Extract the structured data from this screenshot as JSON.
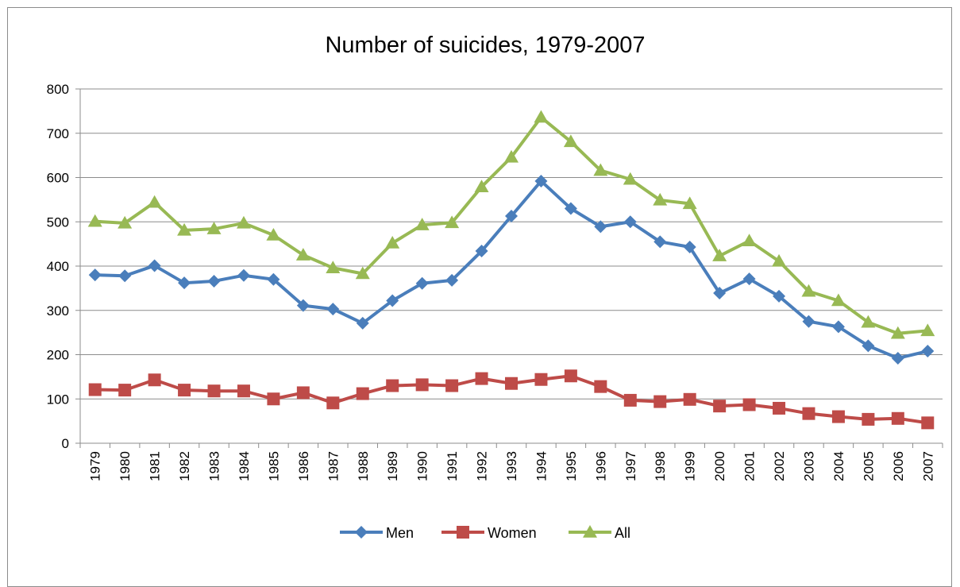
{
  "chart_data": {
    "type": "line",
    "title": "Number of suicides, 1979-2007",
    "xlabel": "",
    "ylabel": "",
    "ylim": [
      0,
      800
    ],
    "yticks": [
      "0",
      "100",
      "200",
      "300",
      "400",
      "500",
      "600",
      "700",
      "800"
    ],
    "ytick_values": [
      0,
      100,
      200,
      300,
      400,
      500,
      600,
      700,
      800
    ],
    "grid": "horizontal",
    "legend_position": "bottom",
    "categories": [
      "1979",
      "1980",
      "1981",
      "1982",
      "1983",
      "1984",
      "1985",
      "1986",
      "1987",
      "1988",
      "1989",
      "1990",
      "1991",
      "1992",
      "1993",
      "1994",
      "1995",
      "1996",
      "1997",
      "1998",
      "1999",
      "2000",
      "2001",
      "2002",
      "2003",
      "2004",
      "2005",
      "2006",
      "2007"
    ],
    "series": [
      {
        "name": "Men",
        "color": "#4a7ebb",
        "marker": "diamond",
        "values": [
          380,
          378,
          401,
          362,
          366,
          379,
          370,
          311,
          303,
          271,
          322,
          361,
          368,
          434,
          513,
          592,
          530,
          489,
          500,
          455,
          443,
          339,
          371,
          332,
          275,
          263,
          220,
          192,
          208
        ]
      },
      {
        "name": "Women",
        "color": "#be4b48",
        "marker": "square",
        "values": [
          121,
          120,
          143,
          120,
          118,
          118,
          100,
          114,
          91,
          112,
          130,
          132,
          130,
          146,
          135,
          144,
          152,
          128,
          97,
          94,
          99,
          84,
          87,
          79,
          67,
          60,
          54,
          56,
          46
        ]
      },
      {
        "name": "All",
        "color": "#98b954",
        "marker": "triangle",
        "values": [
          501,
          497,
          544,
          481,
          484,
          497,
          470,
          425,
          396,
          383,
          452,
          493,
          498,
          579,
          646,
          736,
          681,
          616,
          596,
          549,
          541,
          423,
          457,
          411,
          343,
          322,
          273,
          248,
          254
        ]
      }
    ]
  }
}
